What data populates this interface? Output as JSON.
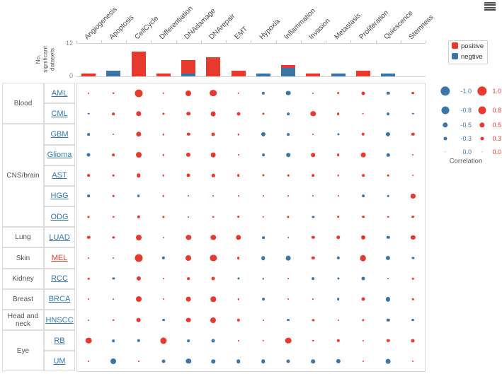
{
  "top_chart": {
    "ylabel": "No.\nsignificant\ndatasets",
    "y_axis": {
      "top_tick": "12",
      "bottom_tick": "0"
    },
    "legend": {
      "positive": "positive",
      "negative": "negtive"
    }
  },
  "row_groups": [
    {
      "group": "Blood",
      "items": [
        "AML",
        "CML"
      ]
    },
    {
      "group": "CNS/brain",
      "items": [
        "GBM",
        "Glioma",
        "AST",
        "HGG",
        "ODG"
      ]
    },
    {
      "group": "Lung",
      "items": [
        "LUAD"
      ]
    },
    {
      "group": "Skin",
      "items": [
        "MEL"
      ]
    },
    {
      "group": "Kidney",
      "items": [
        "RCC"
      ]
    },
    {
      "group": "Breast",
      "items": [
        "BRCA"
      ]
    },
    {
      "group": "Head and neck",
      "items": [
        "HNSCC"
      ]
    },
    {
      "group": "Eye",
      "items": [
        "RB",
        "UM"
      ]
    }
  ],
  "highlighted_item": "MEL",
  "size_legend": {
    "title": "Correlation",
    "sizes": [
      1.0,
      0.8,
      0.5,
      0.3,
      0.0
    ],
    "negative_labels": [
      "-1.0",
      "-0.8",
      "-0.5",
      "-0.3",
      "0.0"
    ],
    "positive_labels": [
      "1.0",
      "0.8",
      "0.5",
      "0.3",
      "0.0"
    ]
  },
  "colors": {
    "positive": "#e8392e",
    "negative": "#3c76a9",
    "link": "#3179b5",
    "highlight_link": "#e8392e"
  },
  "chart_data": [
    {
      "type": "bar",
      "stacked": true,
      "title": "",
      "ylabel": "No. significant datasets",
      "ylim": [
        0,
        12
      ],
      "yticks": [
        0,
        12
      ],
      "legend_position": "right",
      "categories": [
        "Angiogenesis",
        "Apoptosis",
        "CellCycle",
        "Differentiation",
        "DNAdamage",
        "DNArepair",
        "EMT",
        "Hypoxia",
        "Inflammation",
        "Invasion",
        "Metastasis",
        "Proliferation",
        "Quiescence",
        "Stemness"
      ],
      "series": [
        {
          "name": "positive",
          "color": "#e8392e",
          "values": [
            1,
            0,
            9,
            1,
            5,
            7,
            2,
            0,
            1,
            1,
            0,
            2,
            0,
            0
          ]
        },
        {
          "name": "negtive",
          "color": "#3c76a9",
          "values": [
            0,
            2,
            0,
            0,
            1,
            0,
            0,
            1,
            3,
            0,
            1,
            0,
            1,
            0
          ]
        }
      ]
    },
    {
      "type": "heatmap",
      "subtype": "bubble-matrix",
      "value_meaning": "correlation; red = positive, blue = negative, dot size = |value|",
      "vlim": [
        -1,
        1
      ],
      "columns": [
        "Angiogenesis",
        "Apoptosis",
        "CellCycle",
        "Differentiation",
        "DNAdamage",
        "DNArepair",
        "EMT",
        "Hypoxia",
        "Inflammation",
        "Invasion",
        "Metastasis",
        "Proliferation",
        "Quiescence",
        "Stemness"
      ],
      "rows": [
        "AML",
        "CML",
        "GBM",
        "Glioma",
        "AST",
        "HGG",
        "ODG",
        "LUAD",
        "MEL",
        "RCC",
        "BRCA",
        "HNSCC",
        "RB",
        "UM"
      ],
      "values": [
        [
          0.05,
          0.1,
          0.8,
          0.1,
          0.55,
          0.7,
          0.1,
          -0.25,
          -0.45,
          0.05,
          0.2,
          0.3,
          -0.25,
          0.2
        ],
        [
          -0.1,
          0.2,
          0.5,
          0.15,
          0.35,
          0.45,
          0.3,
          0.15,
          -0.2,
          0.5,
          0.2,
          0.1,
          -0.2,
          -0.1
        ],
        [
          -0.2,
          0.05,
          0.5,
          0.1,
          0.25,
          0.3,
          0.1,
          -0.4,
          -0.2,
          0.05,
          -0.15,
          0.25,
          -0.4,
          0.25
        ],
        [
          -0.3,
          0.2,
          0.55,
          0.1,
          0.4,
          0.45,
          0.05,
          -0.2,
          -0.35,
          0.35,
          0.2,
          0.45,
          -0.25,
          0.05
        ],
        [
          0.2,
          0.1,
          0.35,
          0.1,
          0.3,
          0.25,
          0.2,
          0.15,
          0.1,
          0.2,
          0.1,
          0.2,
          0.1,
          0.05
        ],
        [
          -0.2,
          0.1,
          -0.2,
          0.1,
          0.05,
          0.05,
          0.05,
          0.05,
          0.05,
          0.05,
          0.05,
          -0.2,
          -0.1,
          0.4
        ],
        [
          0.15,
          0.1,
          0.25,
          0.15,
          0.05,
          0.1,
          0.2,
          0.1,
          0.15,
          -0.15,
          0.2,
          0.2,
          0.1,
          0.2
        ],
        [
          0.25,
          0.15,
          0.55,
          0.05,
          0.5,
          0.5,
          0.5,
          -0.2,
          -0.05,
          0.25,
          0.35,
          0.4,
          -0.25,
          0.4
        ],
        [
          0.05,
          0.05,
          0.8,
          -0.25,
          0.55,
          0.65,
          0.2,
          -0.35,
          -0.45,
          0.25,
          -0.25,
          0.6,
          -0.4,
          -0.15
        ],
        [
          0.1,
          -0.15,
          0.4,
          0.05,
          0.2,
          0.3,
          -0.15,
          -0.1,
          0.05,
          -0.2,
          -0.15,
          -0.3,
          -0.05,
          0.1
        ],
        [
          0.05,
          0.05,
          0.55,
          0.05,
          0.45,
          0.5,
          0.1,
          -0.2,
          0.05,
          0.05,
          -0.2,
          0.3,
          -0.4,
          0.1
        ],
        [
          0.05,
          0.1,
          0.45,
          -0.2,
          0.45,
          0.55,
          0.25,
          0.05,
          -0.2,
          0.15,
          0.05,
          0.15,
          -0.25,
          -0.2
        ],
        [
          0.6,
          -0.2,
          -0.25,
          0.65,
          -0.2,
          -0.3,
          0.05,
          0.1,
          0.6,
          0.1,
          0.25,
          0.05,
          0.25,
          0.3
        ],
        [
          0.05,
          -0.55,
          0.05,
          -0.3,
          -0.5,
          -0.35,
          -0.35,
          -0.35,
          -0.3,
          -0.35,
          -0.4,
          0.05,
          -0.45,
          0.05
        ]
      ]
    }
  ]
}
